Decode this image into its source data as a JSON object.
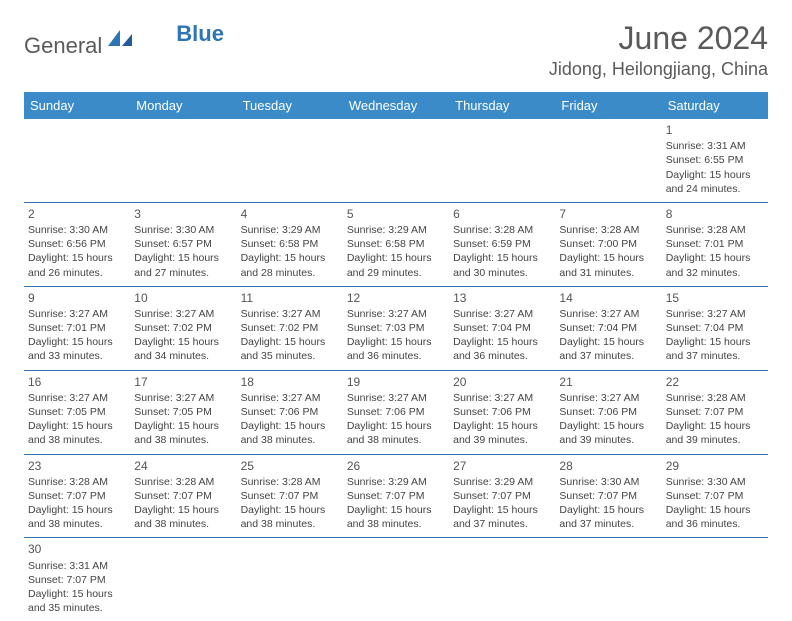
{
  "brand": {
    "text1": "General",
    "text2": "Blue"
  },
  "title": "June 2024",
  "location": "Jidong, Heilongjiang, China",
  "colors": {
    "header_bg": "#3b8bc9",
    "header_fg": "#ffffff",
    "border": "#2e75b6",
    "text": "#444444",
    "title": "#5a5a5a"
  },
  "day_headers": [
    "Sunday",
    "Monday",
    "Tuesday",
    "Wednesday",
    "Thursday",
    "Friday",
    "Saturday"
  ],
  "weeks": [
    [
      null,
      null,
      null,
      null,
      null,
      null,
      {
        "n": "1",
        "sr": "3:31 AM",
        "ss": "6:55 PM",
        "dl": "15 hours and 24 minutes."
      }
    ],
    [
      {
        "n": "2",
        "sr": "3:30 AM",
        "ss": "6:56 PM",
        "dl": "15 hours and 26 minutes."
      },
      {
        "n": "3",
        "sr": "3:30 AM",
        "ss": "6:57 PM",
        "dl": "15 hours and 27 minutes."
      },
      {
        "n": "4",
        "sr": "3:29 AM",
        "ss": "6:58 PM",
        "dl": "15 hours and 28 minutes."
      },
      {
        "n": "5",
        "sr": "3:29 AM",
        "ss": "6:58 PM",
        "dl": "15 hours and 29 minutes."
      },
      {
        "n": "6",
        "sr": "3:28 AM",
        "ss": "6:59 PM",
        "dl": "15 hours and 30 minutes."
      },
      {
        "n": "7",
        "sr": "3:28 AM",
        "ss": "7:00 PM",
        "dl": "15 hours and 31 minutes."
      },
      {
        "n": "8",
        "sr": "3:28 AM",
        "ss": "7:01 PM",
        "dl": "15 hours and 32 minutes."
      }
    ],
    [
      {
        "n": "9",
        "sr": "3:27 AM",
        "ss": "7:01 PM",
        "dl": "15 hours and 33 minutes."
      },
      {
        "n": "10",
        "sr": "3:27 AM",
        "ss": "7:02 PM",
        "dl": "15 hours and 34 minutes."
      },
      {
        "n": "11",
        "sr": "3:27 AM",
        "ss": "7:02 PM",
        "dl": "15 hours and 35 minutes."
      },
      {
        "n": "12",
        "sr": "3:27 AM",
        "ss": "7:03 PM",
        "dl": "15 hours and 36 minutes."
      },
      {
        "n": "13",
        "sr": "3:27 AM",
        "ss": "7:04 PM",
        "dl": "15 hours and 36 minutes."
      },
      {
        "n": "14",
        "sr": "3:27 AM",
        "ss": "7:04 PM",
        "dl": "15 hours and 37 minutes."
      },
      {
        "n": "15",
        "sr": "3:27 AM",
        "ss": "7:04 PM",
        "dl": "15 hours and 37 minutes."
      }
    ],
    [
      {
        "n": "16",
        "sr": "3:27 AM",
        "ss": "7:05 PM",
        "dl": "15 hours and 38 minutes."
      },
      {
        "n": "17",
        "sr": "3:27 AM",
        "ss": "7:05 PM",
        "dl": "15 hours and 38 minutes."
      },
      {
        "n": "18",
        "sr": "3:27 AM",
        "ss": "7:06 PM",
        "dl": "15 hours and 38 minutes."
      },
      {
        "n": "19",
        "sr": "3:27 AM",
        "ss": "7:06 PM",
        "dl": "15 hours and 38 minutes."
      },
      {
        "n": "20",
        "sr": "3:27 AM",
        "ss": "7:06 PM",
        "dl": "15 hours and 39 minutes."
      },
      {
        "n": "21",
        "sr": "3:27 AM",
        "ss": "7:06 PM",
        "dl": "15 hours and 39 minutes."
      },
      {
        "n": "22",
        "sr": "3:28 AM",
        "ss": "7:07 PM",
        "dl": "15 hours and 39 minutes."
      }
    ],
    [
      {
        "n": "23",
        "sr": "3:28 AM",
        "ss": "7:07 PM",
        "dl": "15 hours and 38 minutes."
      },
      {
        "n": "24",
        "sr": "3:28 AM",
        "ss": "7:07 PM",
        "dl": "15 hours and 38 minutes."
      },
      {
        "n": "25",
        "sr": "3:28 AM",
        "ss": "7:07 PM",
        "dl": "15 hours and 38 minutes."
      },
      {
        "n": "26",
        "sr": "3:29 AM",
        "ss": "7:07 PM",
        "dl": "15 hours and 38 minutes."
      },
      {
        "n": "27",
        "sr": "3:29 AM",
        "ss": "7:07 PM",
        "dl": "15 hours and 37 minutes."
      },
      {
        "n": "28",
        "sr": "3:30 AM",
        "ss": "7:07 PM",
        "dl": "15 hours and 37 minutes."
      },
      {
        "n": "29",
        "sr": "3:30 AM",
        "ss": "7:07 PM",
        "dl": "15 hours and 36 minutes."
      }
    ],
    [
      {
        "n": "30",
        "sr": "3:31 AM",
        "ss": "7:07 PM",
        "dl": "15 hours and 35 minutes."
      },
      null,
      null,
      null,
      null,
      null,
      null
    ]
  ],
  "labels": {
    "sunrise": "Sunrise:",
    "sunset": "Sunset:",
    "daylight": "Daylight:"
  }
}
